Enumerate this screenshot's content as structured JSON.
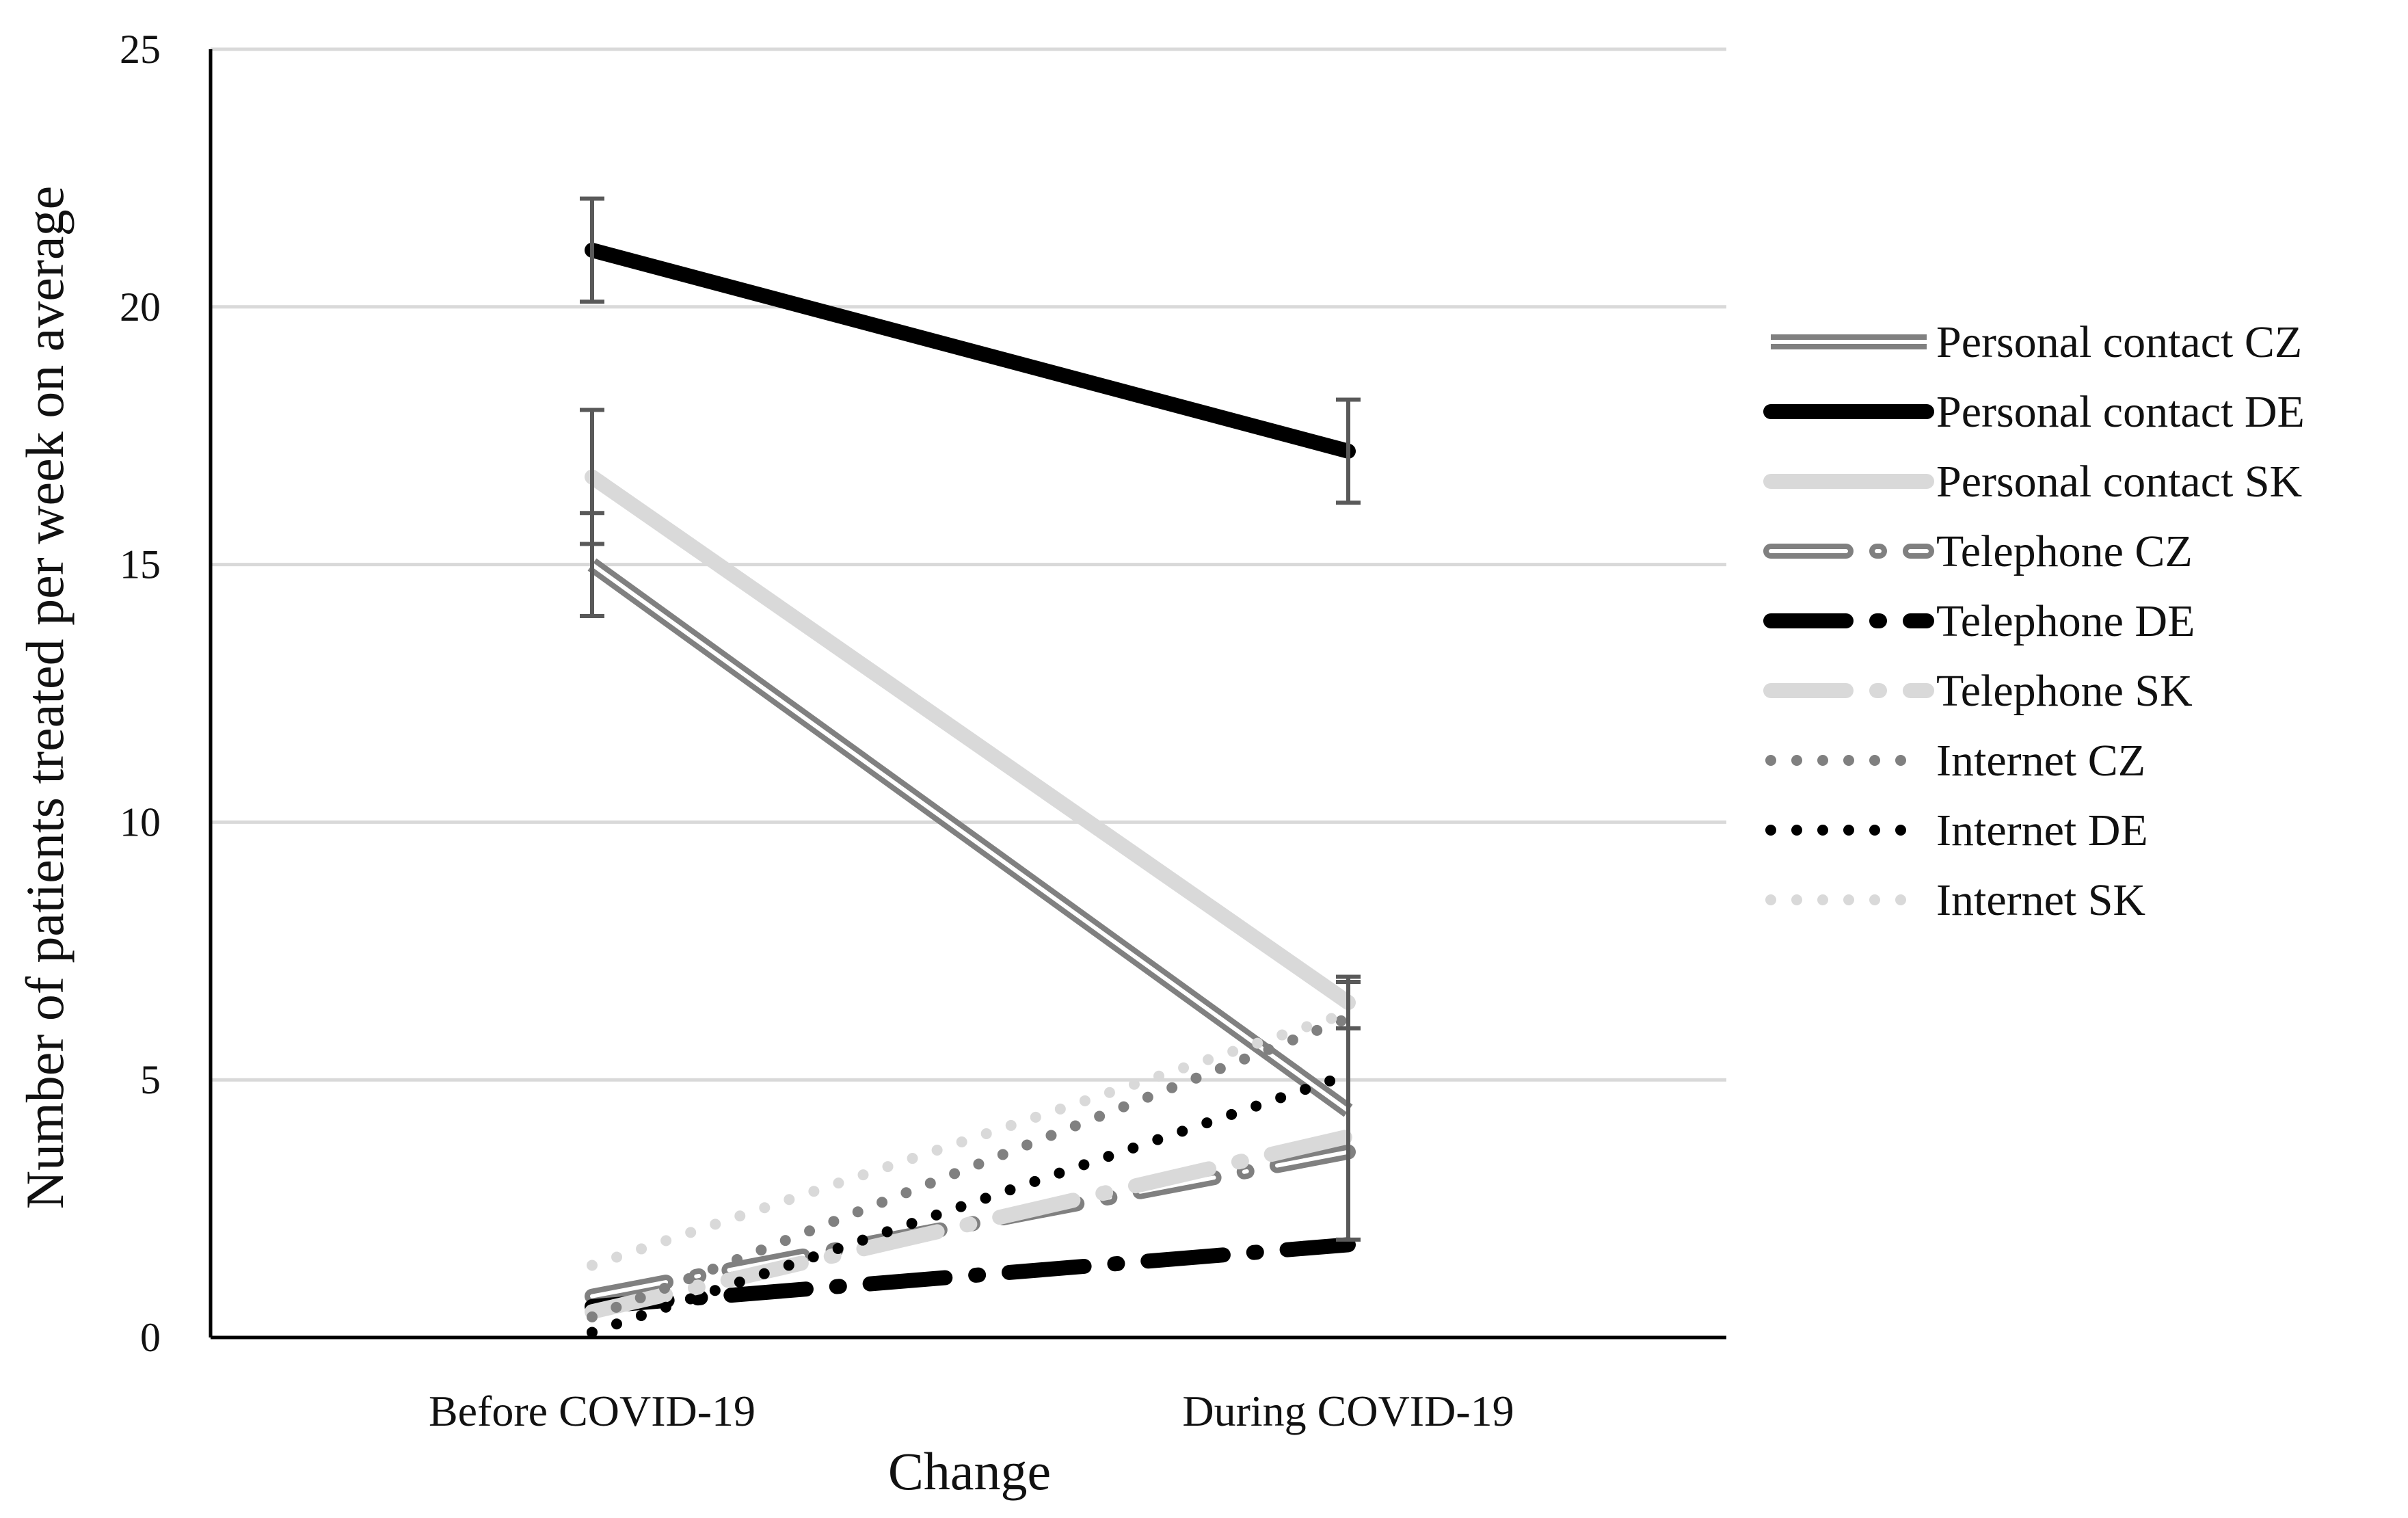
{
  "chart_data": {
    "type": "line",
    "title": "",
    "xlabel": "Change",
    "ylabel": "Number of patients treated per week on average",
    "categories": [
      "Before COVID-19",
      "During COVID-19"
    ],
    "ylim": [
      0,
      25
    ],
    "yticks": [
      0,
      5,
      10,
      15,
      20,
      25
    ],
    "ytick_labels": [
      "0",
      "5",
      "10",
      "15",
      "20",
      "25"
    ],
    "grid": true,
    "legend_position": "right",
    "series": [
      {
        "name": "Personal contact CZ",
        "values": [
          15.0,
          4.4
        ],
        "error": [
          1.0,
          2.5
        ],
        "color": "#808080",
        "line_style": "double"
      },
      {
        "name": "Personal contact DE",
        "values": [
          21.1,
          17.2
        ],
        "error": [
          1.0,
          1.0
        ],
        "color": "#000000",
        "line_style": "solid-thick"
      },
      {
        "name": "Personal contact SK",
        "values": [
          16.7,
          6.5
        ],
        "error": [
          1.3,
          0.5
        ],
        "color": "#d9d9d9",
        "line_style": "solid-thick"
      },
      {
        "name": "Telephone CZ",
        "values": [
          0.8,
          3.6
        ],
        "error": [
          0.0,
          0.0
        ],
        "color": "#808080",
        "line_style": "double-dash-dot"
      },
      {
        "name": "Telephone DE",
        "values": [
          0.6,
          1.8
        ],
        "error": [
          0.0,
          0.0
        ],
        "color": "#000000",
        "line_style": "dash-dot"
      },
      {
        "name": "Telephone SK",
        "values": [
          0.5,
          3.9
        ],
        "error": [
          0.0,
          0.0
        ],
        "color": "#d9d9d9",
        "line_style": "dash-dot"
      },
      {
        "name": "Internet CZ",
        "values": [
          0.4,
          6.2
        ],
        "error": [
          0.0,
          0.0
        ],
        "color": "#808080",
        "line_style": "dotted"
      },
      {
        "name": "Internet DE",
        "values": [
          0.1,
          5.1
        ],
        "error": [
          0.0,
          0.0
        ],
        "color": "#000000",
        "line_style": "dotted"
      },
      {
        "name": "Internet SK",
        "values": [
          1.4,
          6.3
        ],
        "error": [
          0.0,
          0.0
        ],
        "color": "#d9d9d9",
        "line_style": "dotted"
      }
    ],
    "error_bar_color": "#595959"
  }
}
